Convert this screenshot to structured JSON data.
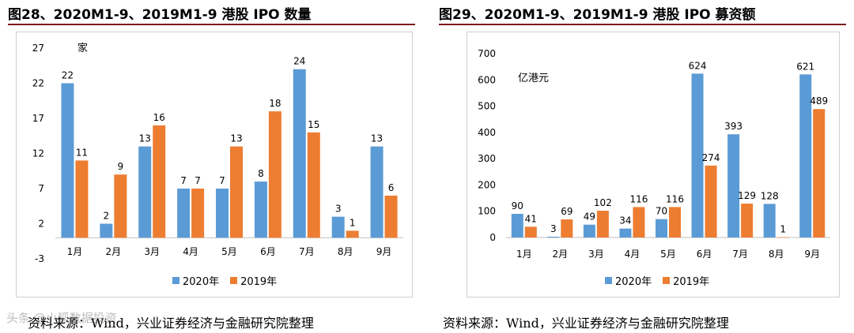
{
  "watermark": "头条 @小狐数据投资",
  "chart_data": [
    {
      "type": "bar",
      "title": "图28、2020M1-9、2019M1-9 港股 IPO 数量",
      "unit_label": "家",
      "categories": [
        "1月",
        "2月",
        "3月",
        "4月",
        "5月",
        "6月",
        "7月",
        "8月",
        "9月"
      ],
      "yticks": [
        -3,
        2,
        7,
        12,
        17,
        22,
        27
      ],
      "ylim": [
        -3,
        27
      ],
      "series": [
        {
          "name": "2020年",
          "color": "#5b9bd5",
          "values": [
            22,
            2,
            13,
            7,
            7,
            8,
            24,
            3,
            13
          ]
        },
        {
          "name": "2019年",
          "color": "#ed7d31",
          "values": [
            11,
            9,
            16,
            7,
            13,
            18,
            15,
            1,
            6
          ]
        }
      ],
      "source": "资料来源：Wind，兴业证券经济与金融研究院整理"
    },
    {
      "type": "bar",
      "title": "图29、2020M1-9、2019M1-9 港股 IPO 募资额",
      "unit_label": "亿港元",
      "categories": [
        "1月",
        "2月",
        "3月",
        "4月",
        "5月",
        "6月",
        "7月",
        "8月",
        "9月"
      ],
      "yticks": [
        0,
        100,
        200,
        300,
        400,
        500,
        600,
        700
      ],
      "ylim": [
        0,
        700
      ],
      "series": [
        {
          "name": "2020年",
          "color": "#5b9bd5",
          "values": [
            90,
            3,
            49,
            34,
            70,
            624,
            393,
            128,
            621
          ]
        },
        {
          "name": "2019年",
          "color": "#ed7d31",
          "values": [
            41,
            69,
            102,
            116,
            116,
            274,
            129,
            1,
            489
          ]
        }
      ],
      "source": "资料来源：Wind，兴业证券经济与金融研究院整理"
    }
  ]
}
